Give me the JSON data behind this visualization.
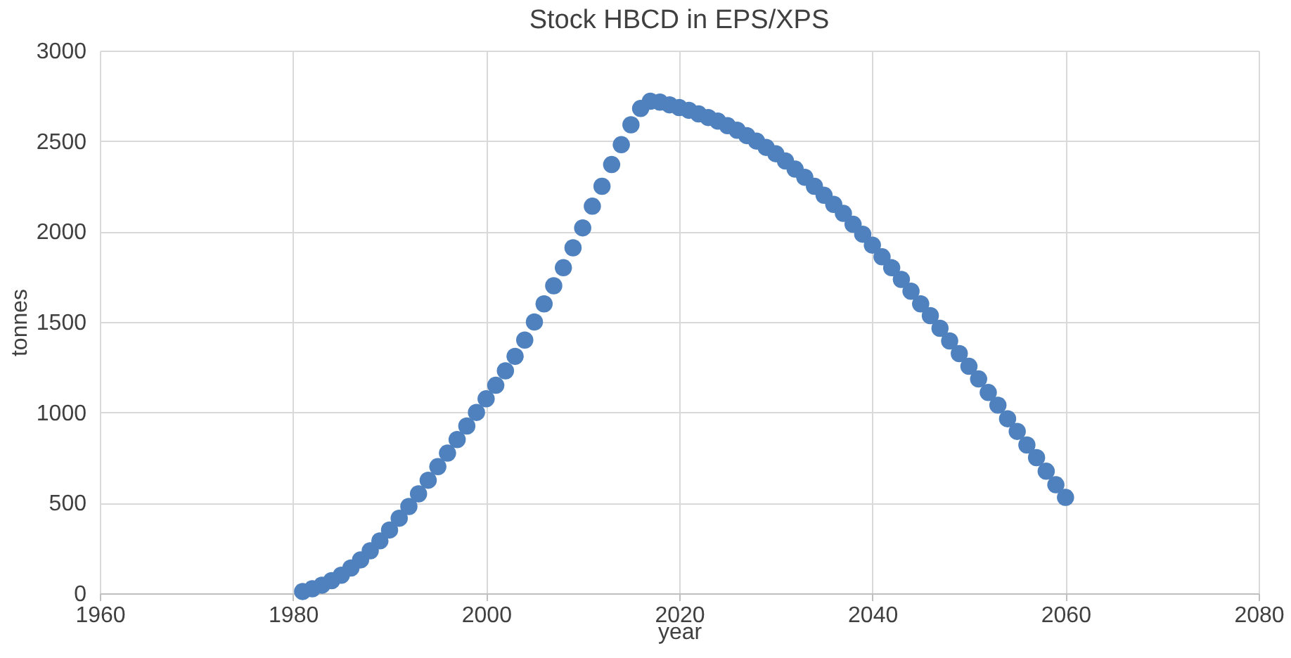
{
  "chart_data": {
    "type": "scatter",
    "title": "Stock HBCD in EPS/XPS",
    "xlabel": "year",
    "ylabel": "tonnes",
    "x": [
      1981,
      1982,
      1983,
      1984,
      1985,
      1986,
      1987,
      1988,
      1989,
      1990,
      1991,
      1992,
      1993,
      1994,
      1995,
      1996,
      1997,
      1998,
      1999,
      2000,
      2001,
      2002,
      2003,
      2004,
      2005,
      2006,
      2007,
      2008,
      2009,
      2010,
      2011,
      2012,
      2013,
      2014,
      2015,
      2016,
      2017,
      2018,
      2019,
      2020,
      2021,
      2022,
      2023,
      2024,
      2025,
      2026,
      2027,
      2028,
      2029,
      2030,
      2031,
      2032,
      2033,
      2034,
      2035,
      2036,
      2037,
      2038,
      2039,
      2040,
      2041,
      2042,
      2043,
      2044,
      2045,
      2046,
      2047,
      2048,
      2049,
      2050,
      2051,
      2052,
      2053,
      2054,
      2055,
      2056,
      2057,
      2058,
      2059,
      2060
    ],
    "series": [
      {
        "color": "#4e81bd",
        "values": [
          10,
          25,
          45,
          70,
          100,
          140,
          185,
          235,
          290,
          350,
          415,
          480,
          550,
          625,
          700,
          775,
          850,
          925,
          1000,
          1075,
          1150,
          1230,
          1310,
          1400,
          1500,
          1600,
          1700,
          1800,
          1910,
          2020,
          2140,
          2250,
          2370,
          2480,
          2590,
          2680,
          2720,
          2715,
          2700,
          2685,
          2670,
          2650,
          2630,
          2610,
          2585,
          2560,
          2530,
          2500,
          2465,
          2430,
          2390,
          2345,
          2300,
          2250,
          2200,
          2150,
          2100,
          2040,
          1985,
          1925,
          1860,
          1800,
          1735,
          1670,
          1600,
          1535,
          1465,
          1395,
          1325,
          1255,
          1185,
          1110,
          1040,
          965,
          895,
          820,
          750,
          675,
          600,
          530
        ]
      }
    ],
    "xlim": [
      1960,
      2080
    ],
    "xticks": [
      1960,
      1980,
      2000,
      2020,
      2040,
      2060,
      2080
    ],
    "ylim": [
      0,
      3000
    ],
    "yticks": [
      0,
      500,
      1000,
      1500,
      2000,
      2500,
      3000
    ],
    "grid": true,
    "marker": "circle"
  }
}
